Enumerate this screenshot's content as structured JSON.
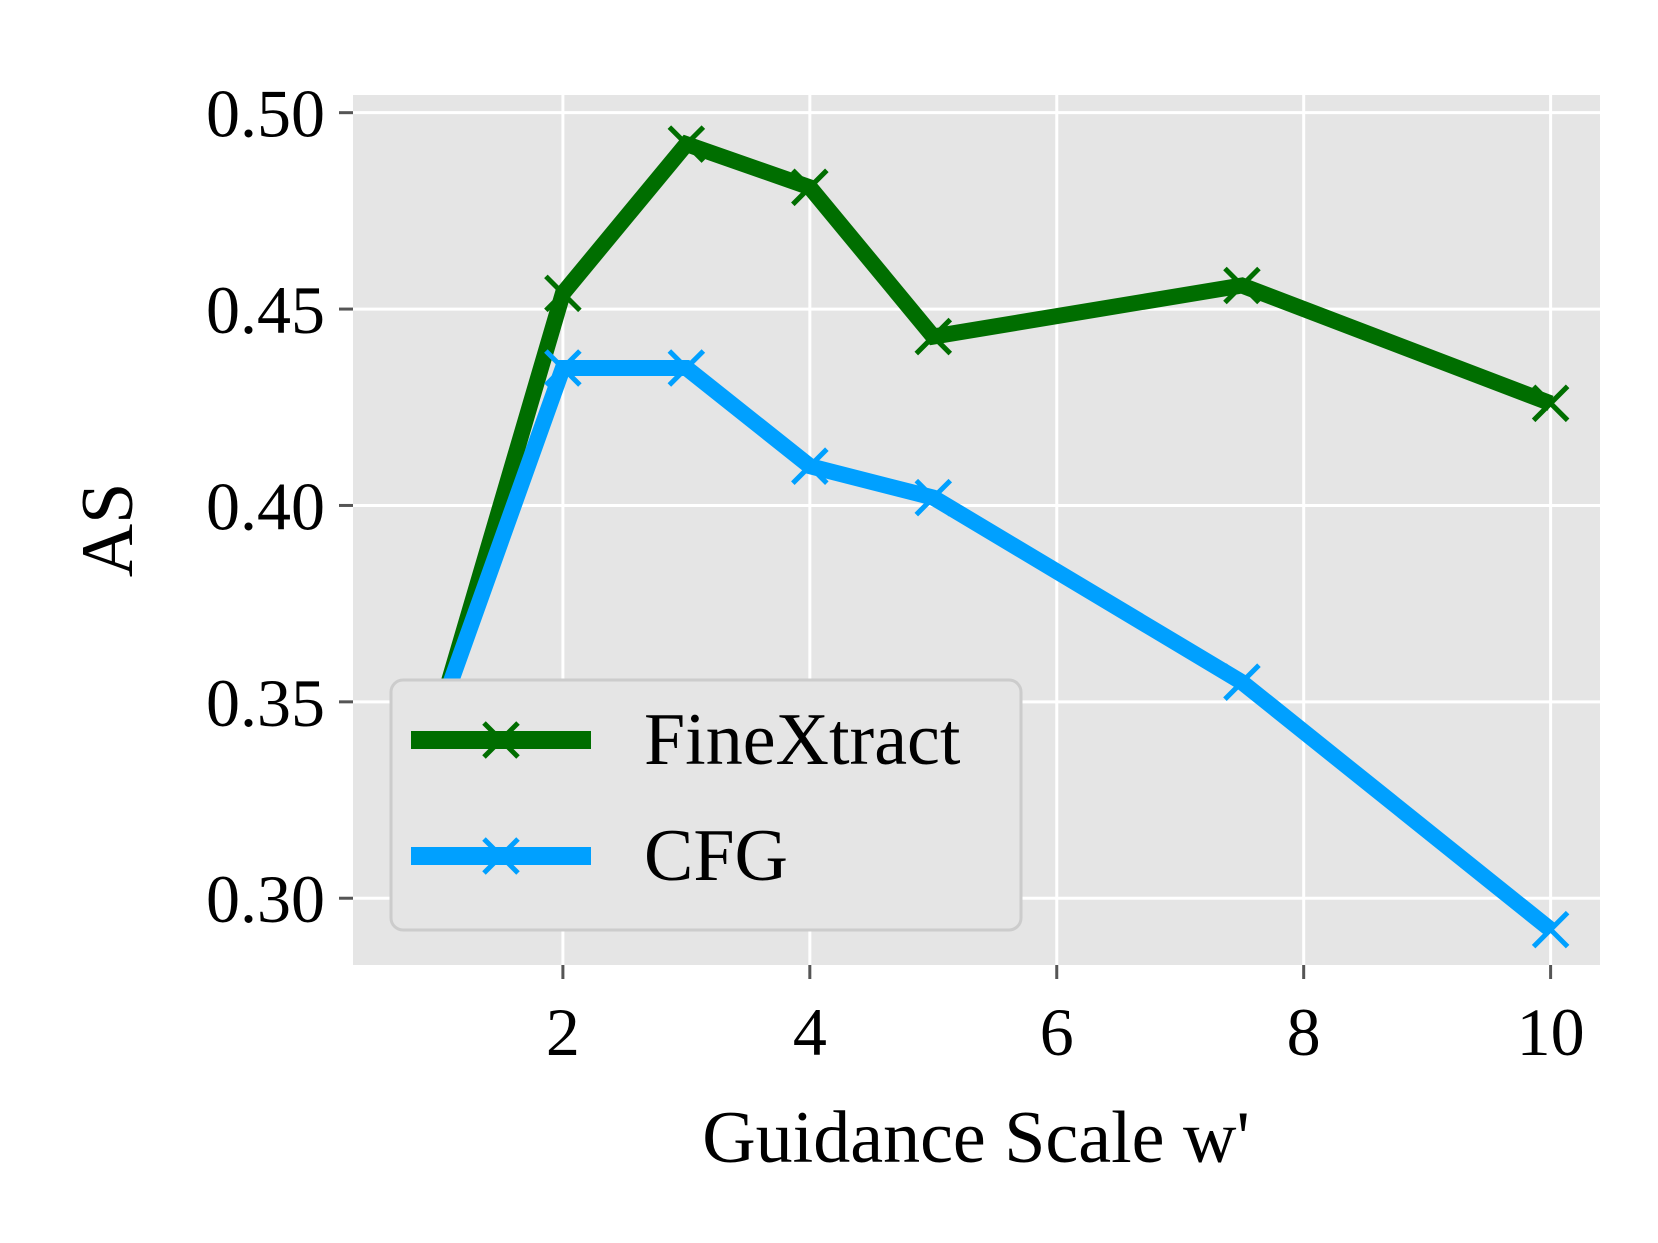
{
  "chart_data": {
    "type": "line",
    "xlabel": "Guidance Scale w'",
    "ylabel": "AS",
    "xlim": [
      0.3,
      10.4
    ],
    "ylim": [
      0.283,
      0.5045
    ],
    "xticks": [
      2,
      4,
      6,
      8,
      10
    ],
    "xtick_labels": [
      "2",
      "4",
      "6",
      "8",
      "10"
    ],
    "yticks": [
      0.3,
      0.35,
      0.4,
      0.45,
      0.5
    ],
    "ytick_labels": [
      "0.30",
      "0.35",
      "0.40",
      "0.45",
      "0.50"
    ],
    "grid": true,
    "background": "#e5e5e5",
    "legend_position": "lower-left",
    "series": [
      {
        "name": "FineXtract",
        "color": "#006e00",
        "marker": "x",
        "x": [
          1,
          2,
          3,
          4,
          5,
          7.5,
          10
        ],
        "y": [
          0.347,
          0.454,
          0.492,
          0.481,
          0.443,
          0.456,
          0.426
        ]
      },
      {
        "name": "CFG",
        "color": "#00a0ff",
        "marker": "x",
        "x": [
          1,
          2,
          3,
          4,
          5,
          7.5,
          10
        ],
        "y": [
          0.347,
          0.435,
          0.435,
          0.41,
          0.402,
          0.355,
          0.292
        ]
      }
    ]
  }
}
